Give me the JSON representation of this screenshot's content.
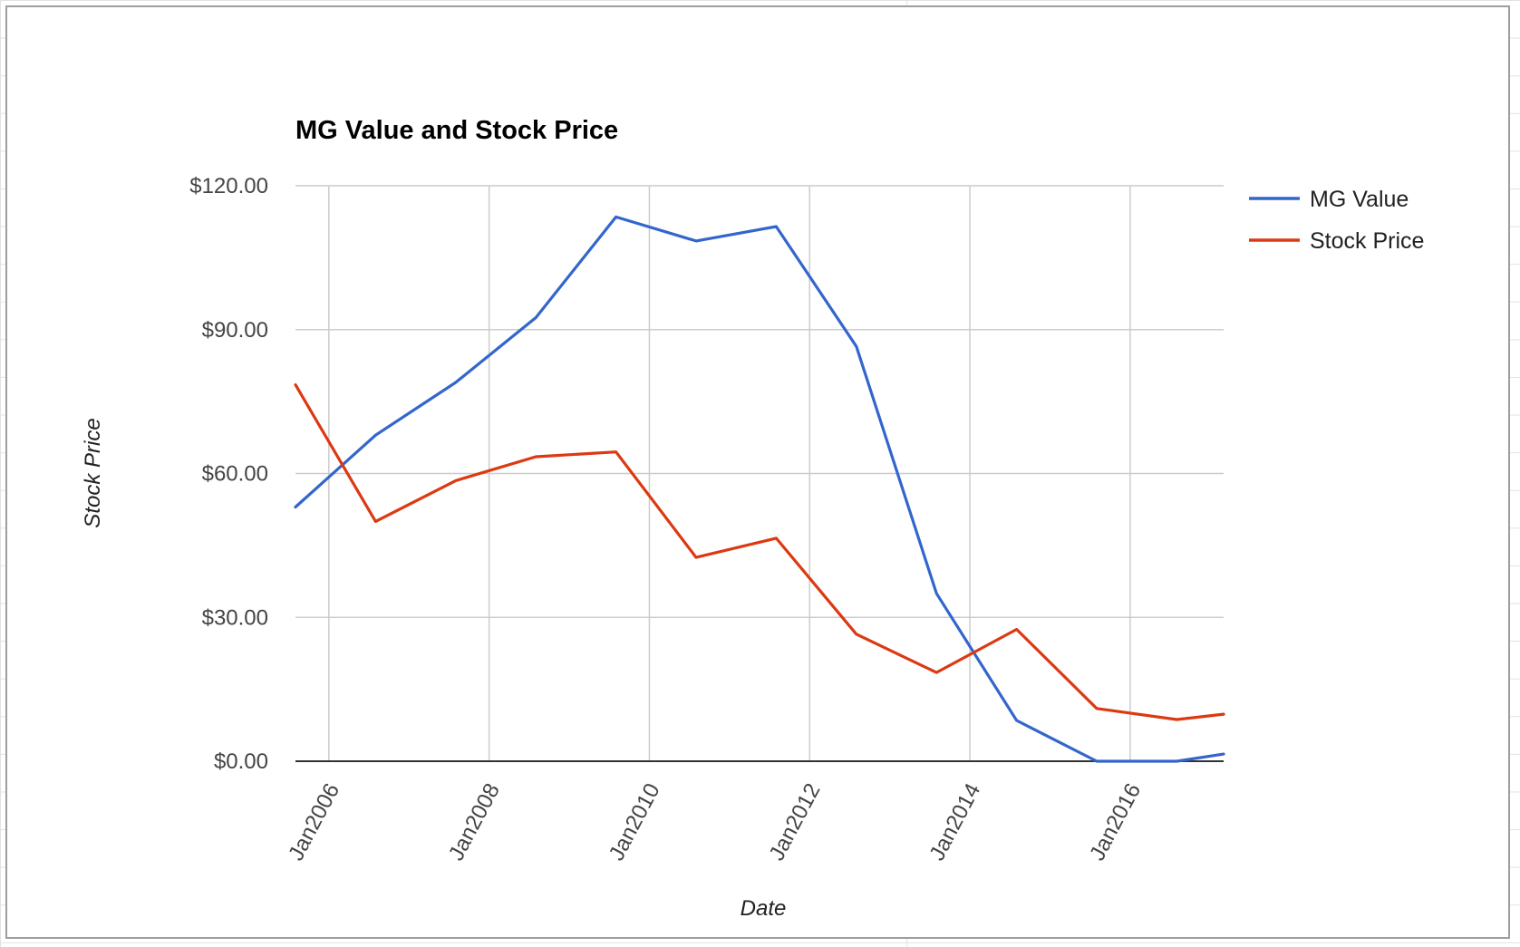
{
  "chart_data": {
    "type": "line",
    "title": "MG Value and Stock Price",
    "xlabel": "Date",
    "ylabel": "Stock Price",
    "x": [
      "2005-08",
      "2006-08",
      "2007-08",
      "2008-08",
      "2009-08",
      "2010-08",
      "2011-08",
      "2012-08",
      "2013-08",
      "2014-08",
      "2015-08",
      "2016-08",
      "2017-03"
    ],
    "xlim": [
      "2005-08",
      "2017-03"
    ],
    "x_ticks": [
      "2006-01",
      "2008-01",
      "2010-01",
      "2012-01",
      "2014-01",
      "2016-01"
    ],
    "x_tick_labels": [
      "Jan2006",
      "Jan2008",
      "Jan2010",
      "Jan2012",
      "Jan2014",
      "Jan2016"
    ],
    "ylim": [
      0,
      120
    ],
    "y_ticks": [
      0,
      30,
      60,
      90,
      120
    ],
    "y_tick_labels": [
      "$0.00",
      "$30.00",
      "$60.00",
      "$90.00",
      "$120.00"
    ],
    "grid": true,
    "legend_position": "right",
    "series": [
      {
        "name": "MG Value",
        "color": "#3366cc",
        "values": [
          53.0,
          68.0,
          79.0,
          92.5,
          113.5,
          108.5,
          111.5,
          86.5,
          35.0,
          8.5,
          0.0,
          0.0,
          1.5
        ]
      },
      {
        "name": "Stock Price",
        "color": "#dc3912",
        "values": [
          78.5,
          50.0,
          58.5,
          63.5,
          64.5,
          42.5,
          46.5,
          26.5,
          18.5,
          27.5,
          11.0,
          8.7,
          9.8
        ]
      }
    ]
  }
}
